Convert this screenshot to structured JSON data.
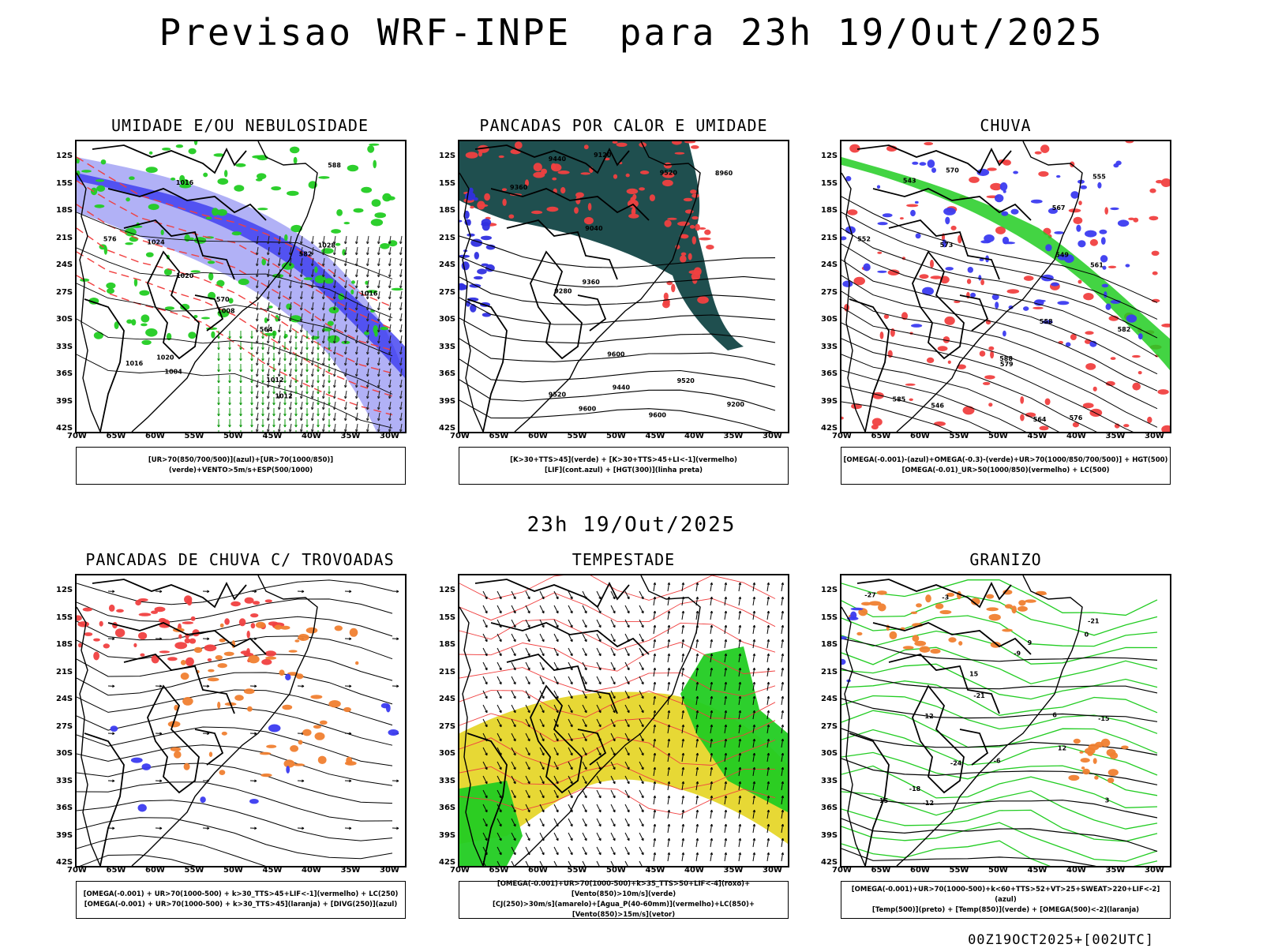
{
  "title": "Previsao WRF-INPE  para 23h 19/Out/2025",
  "subtitle": "23h 19/Out/2025",
  "footer": "00Z19OCT2025+[002UTC]",
  "lat_labels": [
    "12S",
    "15S",
    "18S",
    "21S",
    "24S",
    "27S",
    "30S",
    "33S",
    "36S",
    "39S",
    "42S"
  ],
  "lon_labels": [
    "70W",
    "65W",
    "60W",
    "55W",
    "50W",
    "45W",
    "40W",
    "35W",
    "30W"
  ],
  "colors": {
    "blue": "#3b3bf0",
    "lightblue": "#a9a9f5",
    "green": "#22cc22",
    "red": "#f04040",
    "darkteal": "#1f4f4f",
    "yellow": "#e6d62a",
    "orange": "#f08030"
  },
  "panels": [
    {
      "title": "UMIDADE E/OU NEBULOSIDADE",
      "legend": [
        "[UR>70(850/700/500)](azul)+[UR>70(1000/850)](verde)+VENTO>5m/s+ESP(500/1000)"
      ],
      "contour_labels": [
        "1012",
        "1016",
        "1020",
        "1024",
        "1028",
        "1012",
        "1016",
        "1020",
        "1008",
        "1004",
        "1016",
        "576",
        "570",
        "564",
        "582",
        "588"
      ]
    },
    {
      "title": "PANCADAS POR CALOR E UMIDADE",
      "legend": [
        "[K>30+TTS>45](verde) + [K>30+TTS>45+LI<-1](vermelho)",
        "[LIF](cont.azul) + [HGT(300)](linha preta)"
      ],
      "contour_labels": [
        "9600",
        "9600",
        "9520",
        "9520",
        "9440",
        "9360",
        "9280",
        "9200",
        "9120",
        "9040",
        "8960",
        "9440",
        "9360",
        "9600",
        "9520"
      ]
    },
    {
      "title": "CHUVA",
      "legend": [
        "[OMEGA(-0.001)-(azul)+OMEGA(-0.3)-(verde)+UR>70(1000/850/700/500)] + HGT(500)",
        "[OMEGA(-0.01)_UR>50(1000/850)(vermelho) + LC(500)"
      ],
      "contour_labels": [
        "582",
        "576",
        "579",
        "585",
        "588",
        "573",
        "570",
        "567",
        "564",
        "561",
        "558",
        "555",
        "552",
        "549",
        "546",
        "543"
      ]
    },
    {
      "title": "PANCADAS DE CHUVA C/ TROVOADAS",
      "legend": [
        "[OMEGA(-0.001) + UR>70(1000-500) + k>30_TTS>45+LIF<-1](vermelho) + LC(250)",
        "[OMEGA(-0.001) + UR>70(1000-500) + k>30_TTS>45](laranja) + [DIVG(250)](azul)"
      ],
      "contour_labels": []
    },
    {
      "title": "TEMPESTADE",
      "legend": [
        "[OMEGA(-0.001)+UR>70(1000-500)+k>35_TTS>50+LIF<-4](roxo)+[Vento(850)>10m/s](verde)",
        "[CJ(250)>30m/s](amarelo)+[Agua_P(40-60mm)](vermelho)+LC(850)+[Vento(850)>15m/s](vetor)"
      ],
      "contour_labels": []
    },
    {
      "title": "GRANIZO",
      "legend": [
        "[OMEGA(-0.001)+UR>70(1000-500)+k<60+TTS>52+VT>25+SWEAT>220+LIF<-2](azul)",
        "[Temp(500)](preto) + [Temp(850)](verde) + [OMEGA(500)<-2](laranja)"
      ],
      "contour_labels": [
        "15",
        "12",
        "9",
        "6",
        "3",
        "0",
        "-3",
        "-6",
        "-9",
        "-12",
        "-15",
        "-18",
        "-21",
        "-24",
        "-27",
        "15",
        "12",
        "-21"
      ]
    }
  ]
}
